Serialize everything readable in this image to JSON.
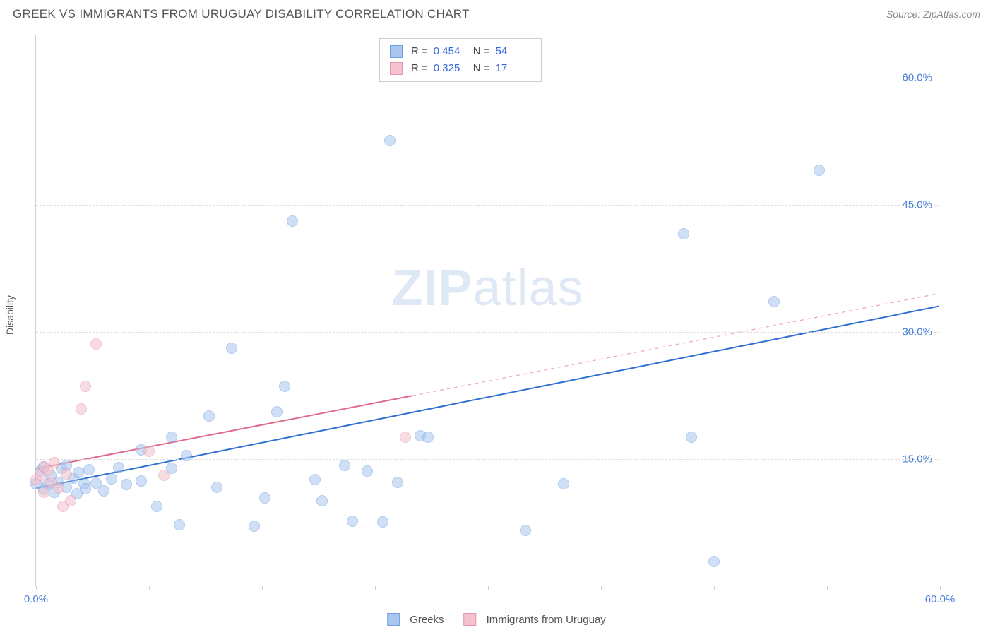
{
  "header": {
    "title": "GREEK VS IMMIGRANTS FROM URUGUAY DISABILITY CORRELATION CHART",
    "source": "Source: ZipAtlas.com"
  },
  "chart": {
    "type": "scatter",
    "ylabel": "Disability",
    "watermark_a": "ZIP",
    "watermark_b": "atlas",
    "background_color": "#ffffff",
    "grid_color": "#dddddd",
    "axis_color": "#d0d0d0",
    "tick_label_color": "#4a7fd8",
    "xlim": [
      0,
      60
    ],
    "ylim": [
      0,
      65
    ],
    "xtick_label_min": "0.0%",
    "xtick_label_max": "60.0%",
    "xticks": [
      0,
      7.5,
      15,
      22.5,
      30,
      37.5,
      45,
      52.5,
      60
    ],
    "yticks": [
      {
        "v": 15,
        "label": "15.0%"
      },
      {
        "v": 30,
        "label": "30.0%"
      },
      {
        "v": 45,
        "label": "45.0%"
      },
      {
        "v": 60,
        "label": "60.0%"
      }
    ],
    "point_radius": 8,
    "point_opacity": 0.55,
    "series": [
      {
        "name": "Greeks",
        "label": "Greeks",
        "color_fill": "#a9c6ee",
        "color_stroke": "#6f9fe0",
        "R": "0.454",
        "N": "54",
        "trend": {
          "x1": 0,
          "y1": 11.5,
          "x2": 60,
          "y2": 33,
          "solid_to_x": 60,
          "stroke": "#2f6fd0",
          "width": 2
        },
        "points": [
          [
            0.0,
            12.0
          ],
          [
            0.3,
            13.5
          ],
          [
            0.5,
            11.3
          ],
          [
            0.5,
            14.0
          ],
          [
            0.8,
            12.0
          ],
          [
            1.0,
            13.0
          ],
          [
            1.2,
            11.0
          ],
          [
            1.5,
            12.2
          ],
          [
            1.7,
            13.8
          ],
          [
            2.0,
            11.6
          ],
          [
            2.0,
            14.2
          ],
          [
            2.5,
            12.7
          ],
          [
            2.7,
            10.8
          ],
          [
            2.8,
            13.3
          ],
          [
            3.2,
            12.0
          ],
          [
            3.3,
            11.4
          ],
          [
            3.5,
            13.7
          ],
          [
            4.0,
            12.1
          ],
          [
            4.5,
            11.2
          ],
          [
            5.0,
            12.6
          ],
          [
            5.5,
            13.9
          ],
          [
            6.0,
            11.9
          ],
          [
            7.0,
            12.3
          ],
          [
            7.0,
            16.0
          ],
          [
            8.0,
            9.3
          ],
          [
            9.0,
            17.5
          ],
          [
            9.0,
            13.8
          ],
          [
            9.5,
            7.2
          ],
          [
            10.0,
            15.3
          ],
          [
            11.5,
            20.0
          ],
          [
            12.0,
            11.6
          ],
          [
            13.0,
            28.0
          ],
          [
            14.5,
            7.0
          ],
          [
            15.2,
            10.3
          ],
          [
            16.0,
            20.5
          ],
          [
            16.5,
            23.5
          ],
          [
            17.0,
            43.0
          ],
          [
            18.5,
            12.5
          ],
          [
            19.0,
            10.0
          ],
          [
            20.5,
            14.2
          ],
          [
            21.0,
            7.6
          ],
          [
            22.0,
            13.5
          ],
          [
            23.0,
            7.5
          ],
          [
            23.5,
            52.5
          ],
          [
            24.0,
            12.2
          ],
          [
            25.5,
            17.7
          ],
          [
            26.0,
            17.5
          ],
          [
            32.5,
            6.5
          ],
          [
            35.0,
            12.0
          ],
          [
            43.5,
            17.5
          ],
          [
            43.0,
            41.5
          ],
          [
            45.0,
            2.8
          ],
          [
            49.0,
            33.5
          ],
          [
            52.0,
            49.0
          ]
        ]
      },
      {
        "name": "Immigrants from Uruguay",
        "label": "Immigrants from Uruguay",
        "color_fill": "#f4c1ce",
        "color_stroke": "#e996ad",
        "R": "0.325",
        "N": "17",
        "trend": {
          "x1": 0,
          "y1": 13.8,
          "x2": 60,
          "y2": 34.5,
          "solid_to_x": 25,
          "stroke": "#e06a8c",
          "width": 2,
          "dash_stroke": "#f0a8bb"
        },
        "points": [
          [
            0.0,
            12.5
          ],
          [
            0.3,
            13.0
          ],
          [
            0.5,
            14.0
          ],
          [
            0.5,
            11.0
          ],
          [
            0.8,
            13.6
          ],
          [
            1.0,
            12.2
          ],
          [
            1.2,
            14.5
          ],
          [
            1.5,
            11.5
          ],
          [
            1.8,
            9.3
          ],
          [
            2.0,
            13.2
          ],
          [
            2.3,
            10.0
          ],
          [
            3.0,
            20.8
          ],
          [
            3.3,
            23.5
          ],
          [
            4.0,
            28.5
          ],
          [
            7.5,
            15.8
          ],
          [
            8.5,
            13.0
          ],
          [
            24.5,
            17.5
          ]
        ]
      }
    ],
    "legend_top": {
      "r_label": "R =",
      "n_label": "N ="
    },
    "legend_bottom": {}
  }
}
